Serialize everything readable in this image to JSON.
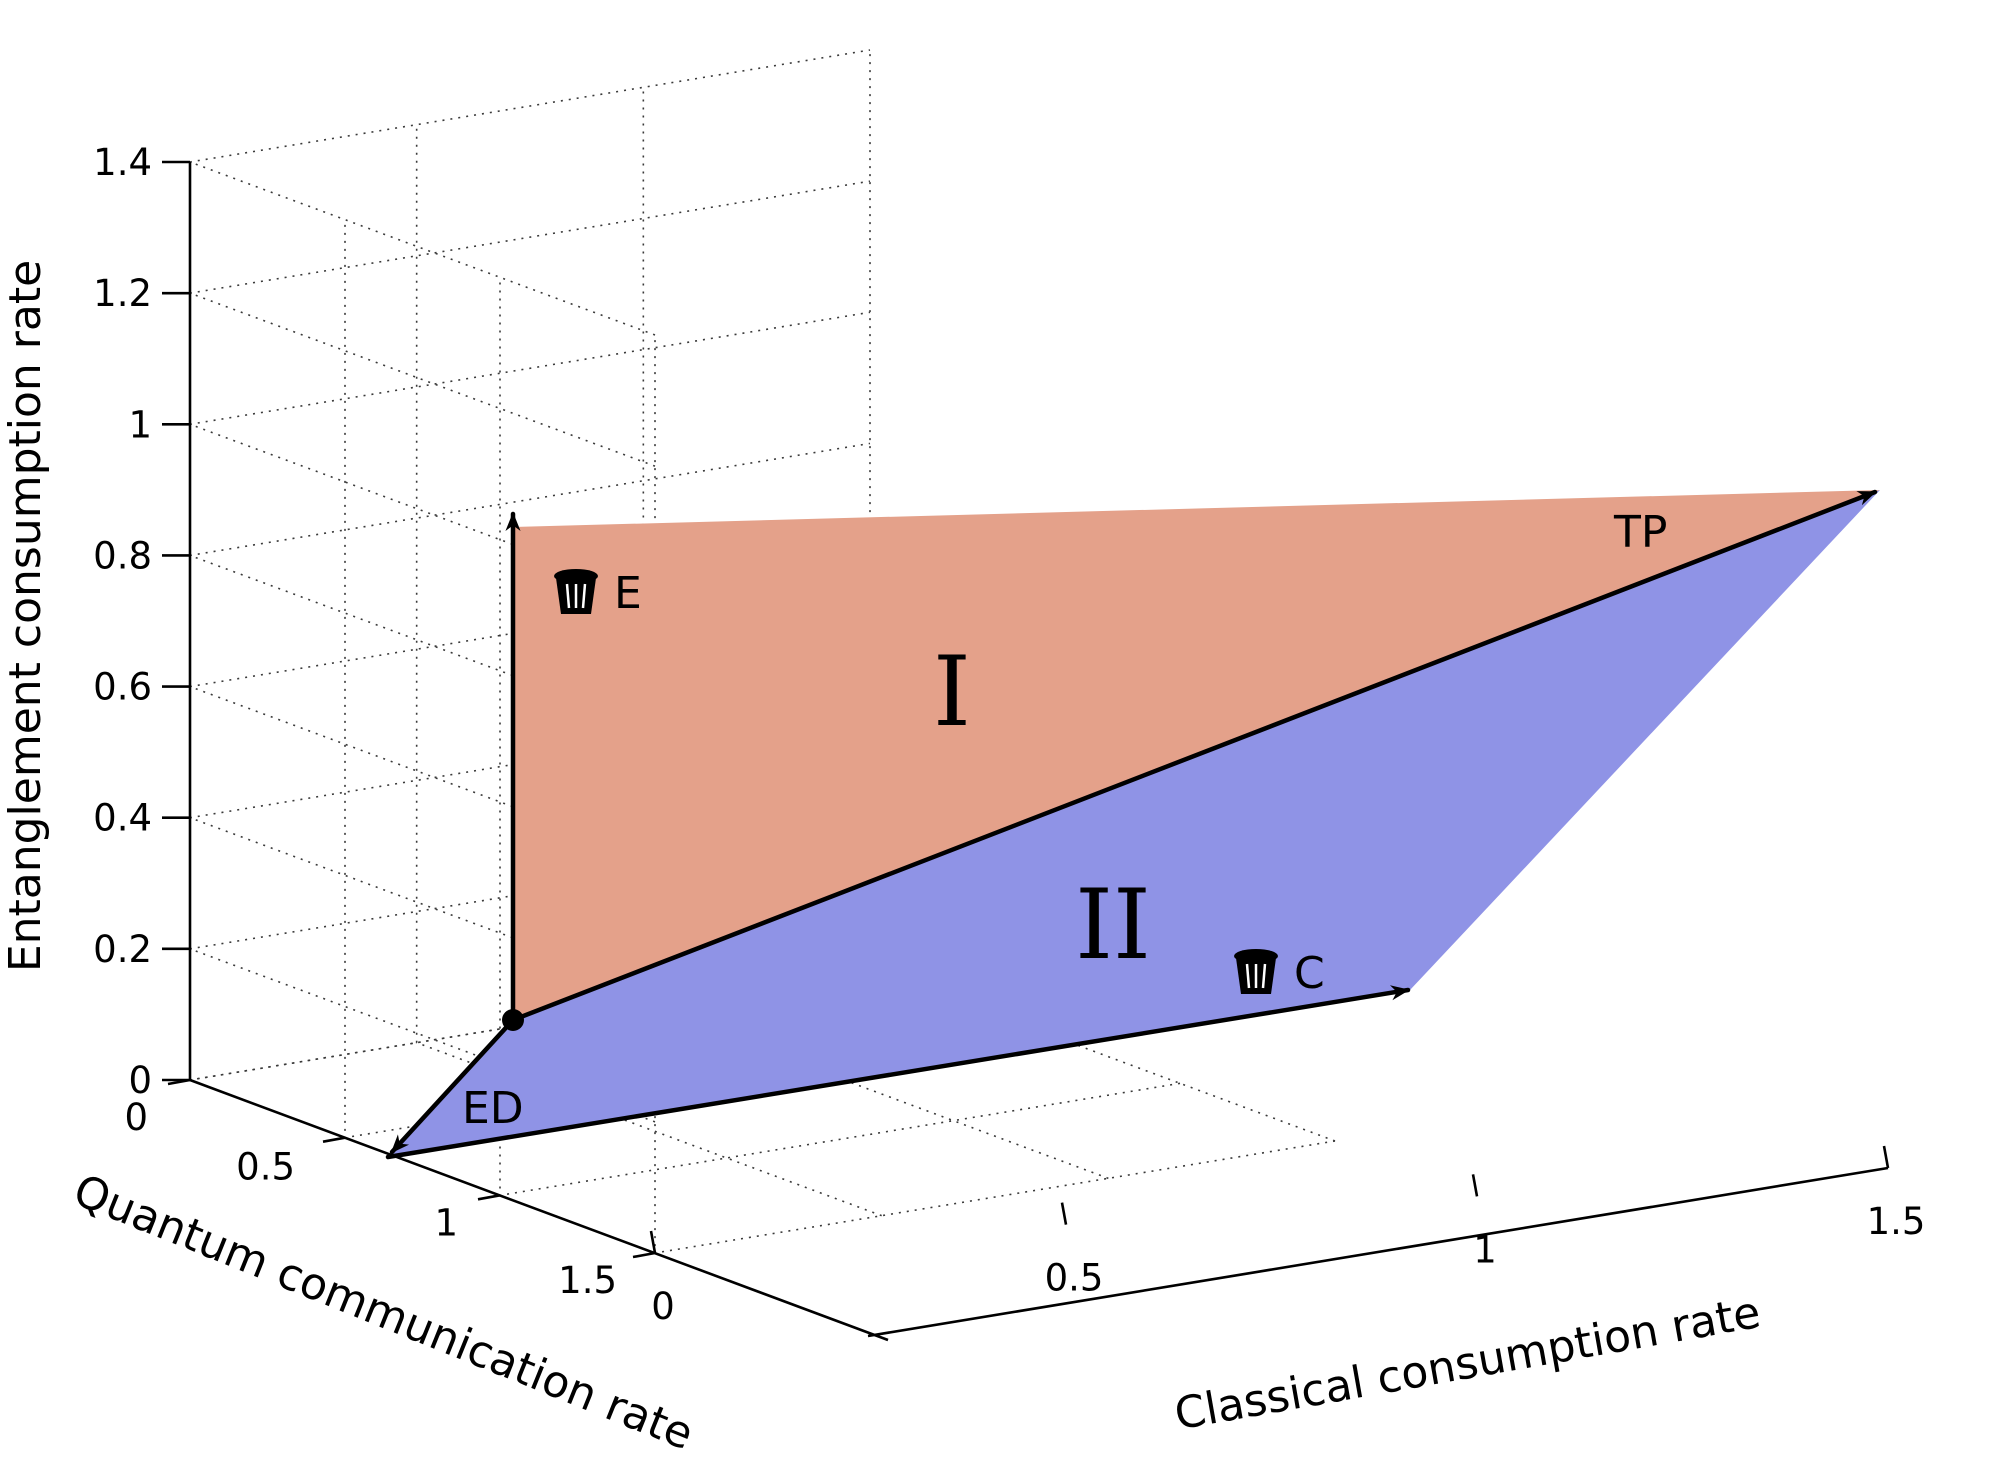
{
  "chart_data": {
    "type": "3d-surface",
    "xlabel": "Classical consumption rate",
    "ylabel": "Quantum communication rate",
    "zlabel": "Entanglement consumption rate",
    "x_ticks": [
      "0",
      "0.5",
      "1",
      "1.5"
    ],
    "y_ticks": [
      "0",
      "0.5",
      "1",
      "1.5"
    ],
    "z_ticks": [
      "0",
      "0.2",
      "0.4",
      "0.6",
      "0.8",
      "1",
      "1.2",
      "1.4"
    ],
    "xlim": [
      0,
      1.5
    ],
    "ylim": [
      0,
      1.5
    ],
    "zlim": [
      0,
      1.4
    ],
    "grid": true,
    "origin": {
      "x": 0,
      "y": 0,
      "z": 0.1
    },
    "vectors": [
      {
        "name": "ED",
        "x": 0,
        "y": 0.5,
        "z": 0
      },
      {
        "name": "E",
        "x": 0,
        "y": 0,
        "z": 0.9
      },
      {
        "name": "C",
        "x": 1,
        "y": 0,
        "z": 0
      },
      {
        "name": "TP",
        "x": 2,
        "y": 0,
        "z": 0.9
      }
    ],
    "regions": [
      {
        "label": "I",
        "color": "#e4a18a"
      },
      {
        "label": "II",
        "color": "#8f93e6"
      }
    ],
    "labels": [
      "ED",
      "E",
      "C",
      "TP"
    ],
    "annotations": [
      "I",
      "II",
      "E",
      "C",
      "ED",
      "TP"
    ]
  }
}
